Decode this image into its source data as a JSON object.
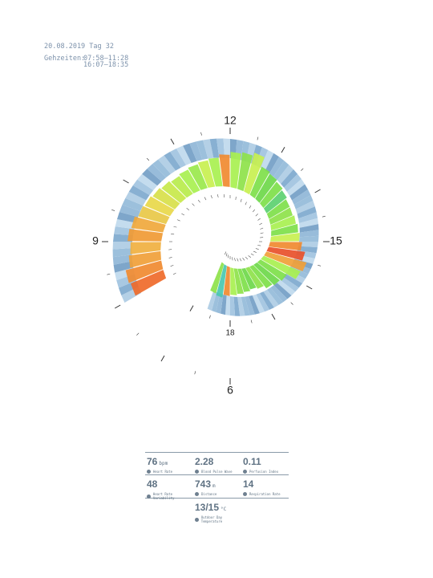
{
  "header": {
    "date": "20.08.2019 Tag 32",
    "walk_label": "Gehzeiten:",
    "walk_times": [
      "07:58–11:28",
      "16:07–18:35"
    ]
  },
  "clock": {
    "labels": [
      "6",
      "9",
      "12",
      "15",
      "18"
    ]
  },
  "bars": {
    "values": [
      44,
      46,
      40,
      38,
      42,
      40,
      36,
      34,
      32,
      30,
      28,
      30,
      32,
      34,
      36,
      40,
      44,
      46,
      50,
      38,
      36,
      34,
      32,
      30,
      30,
      32,
      34,
      36,
      40,
      46,
      52,
      50,
      38,
      36,
      34,
      30,
      28,
      30,
      32,
      34,
      36,
      40,
      38
    ],
    "colors": [
      "#ef6a2a",
      "#f08a30",
      "#f0a038",
      "#f0b040",
      "#f09a34",
      "#f0a83c",
      "#e8c848",
      "#e8d84a",
      "#d8e04a",
      "#c8e84a",
      "#b8ec4c",
      "#a8f050",
      "#9ae84c",
      "#c8f050",
      "#a8f050",
      "#f08a30",
      "#a8f050",
      "#8ee24a",
      "#c8f050",
      "#7ee04a",
      "#6ed84a",
      "#7ee04a",
      "#5cd070",
      "#7ee04a",
      "#8ee24a",
      "#a8f050",
      "#7ee04a",
      "#c8f050",
      "#f08a30",
      "#e8502a",
      "#f0a038",
      "#a8f050",
      "#7ee04a",
      "#6ed84a",
      "#7ee04a",
      "#8ee24a",
      "#6ed84a",
      "#7ee04a",
      "#8ee24a",
      "#a8f050",
      "#f08a30",
      "#4ac8b0",
      "#8ee24a"
    ]
  },
  "stats": [
    {
      "value": "76",
      "unit": "bpm",
      "label": "Heart Rate"
    },
    {
      "value": "2.28",
      "label": "Blood Pulse Wave"
    },
    {
      "value": "0.11",
      "label": "Perfusion Index"
    },
    {
      "value": "48",
      "label": "Heart Rate Variability"
    },
    {
      "value": "743",
      "unit": "m",
      "label": "Distance"
    },
    {
      "value": "14",
      "label": "Respiration Rate"
    },
    {
      "value": "13/15",
      "unit": "°C",
      "label": "Outdoor Day Temperature"
    }
  ]
}
